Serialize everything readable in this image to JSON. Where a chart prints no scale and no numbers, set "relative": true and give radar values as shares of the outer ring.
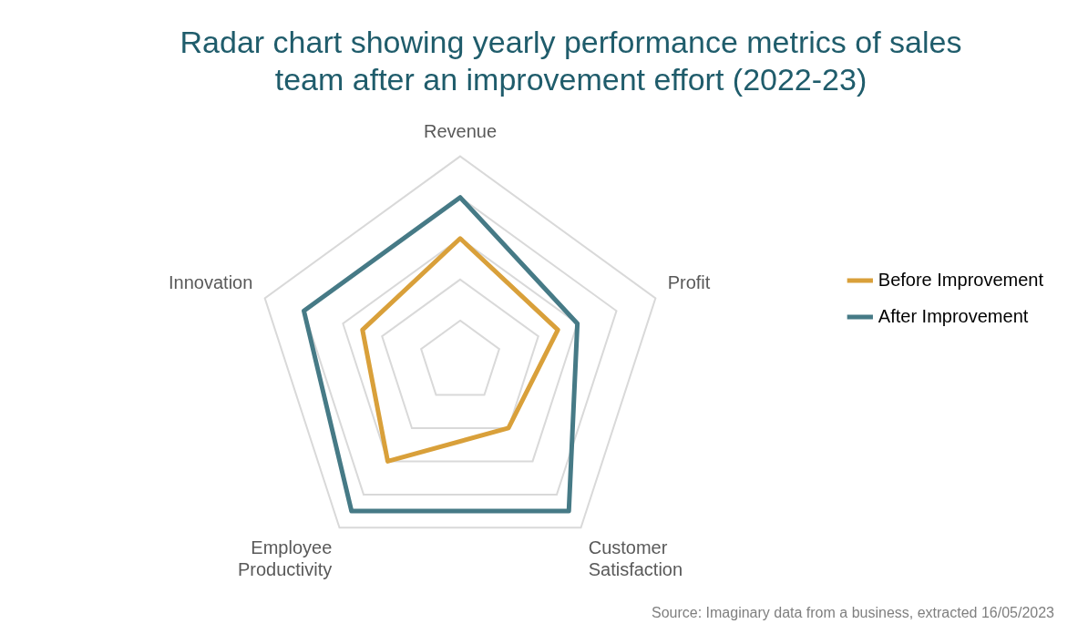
{
  "chart_data": {
    "type": "radar",
    "title": "Radar chart showing yearly performance metrics of sales team after an improvement effort (2022-23)",
    "categories": [
      "Revenue",
      "Profit",
      "Customer Satisfaction",
      "Employee Productivity",
      "Innovation"
    ],
    "relative": true,
    "grid": true,
    "legend": "right",
    "marker": "none",
    "line_style": "solid",
    "series": [
      {
        "name": "Before Improvement",
        "color": "#d9a03a",
        "values": [
          0.6,
          0.5,
          0.4,
          0.6,
          0.5
        ]
      },
      {
        "name": "After Improvement",
        "color": "#467a86",
        "values": [
          0.8,
          0.6,
          0.9,
          0.9,
          0.8
        ]
      }
    ],
    "annotations": [
      "Source: Imaginary data from a business, extracted 16/05/2023"
    ]
  }
}
